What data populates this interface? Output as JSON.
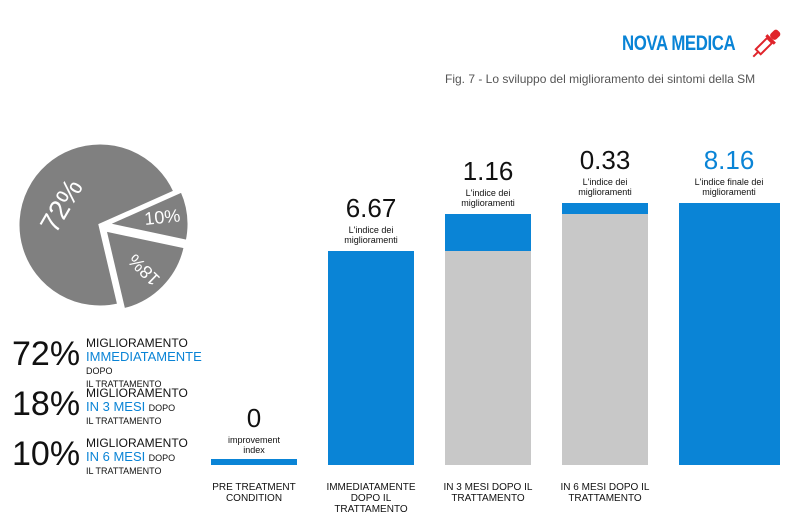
{
  "logo": "NOVA MEDICA",
  "caption": "Fig. 7 - Lo sviluppo del miglioramento dei sintomi della SM",
  "chart_data": [
    {
      "type": "pie",
      "values": [
        72,
        18,
        10
      ],
      "value_labels": [
        "72%",
        "18%",
        "10%"
      ],
      "color": "#808080",
      "highlight_color": "#0a84d6",
      "legend": [
        {
          "title": "MIGLIORAMENTO",
          "highlight": "IMMEDIATAMENTE",
          "suffix": "DOPO",
          "note": "IL TRATTAMENTO"
        },
        {
          "title": "MIGLIORAMENTO",
          "highlight": "IN 3 MESI",
          "suffix": "DOPO",
          "note": "IL TRATTAMENTO"
        },
        {
          "title": "MIGLIORAMENTO",
          "highlight": "IN 6 MESI",
          "suffix": "DOPO",
          "note": "IL TRATTAMENTO"
        }
      ]
    },
    {
      "type": "waterfall",
      "categories": [
        "PRE TREATMENT CONDITION",
        "IMMEDIATAMENTE DOPO IL TRATTAMENTO",
        "IN 3 MESI DOPO IL TRATTAMENTO",
        "IN 6 MESI DOPO IL TRATTAMENTO",
        null
      ],
      "values": [
        0,
        6.67,
        1.16,
        0.33,
        8.16
      ],
      "measures": [
        "absolute",
        "relative",
        "relative",
        "relative",
        "total"
      ],
      "annotations": [
        "improvement index",
        "L'indice dei miglioramenti",
        "L'indice dei miglioramenti",
        "L'indice dei miglioramenti",
        "L'indice finale dei miglioramenti"
      ],
      "color": "#0a84d6",
      "base_color": "#c8c8c8"
    }
  ]
}
